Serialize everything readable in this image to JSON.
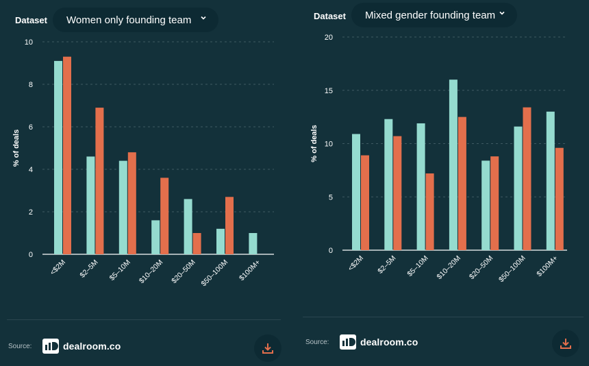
{
  "colors": {
    "background": "#13313a",
    "series_teal": "#95dbcf",
    "series_orange": "#e36f4c",
    "dropdown_bg": "#0d2a33"
  },
  "panels": [
    {
      "dataset_label": "Dataset",
      "dataset_value": "Women only founding team",
      "source_label": "Source:",
      "brand": "dealroom.co"
    },
    {
      "dataset_label": "Dataset",
      "dataset_value": "Mixed gender founding team",
      "source_label": "Source:",
      "brand": "dealroom.co"
    }
  ],
  "chart_data": [
    {
      "type": "bar",
      "title": "",
      "xlabel": "",
      "ylabel": "% of deals",
      "ylim": [
        0,
        10
      ],
      "yticks": [
        0,
        2,
        4,
        6,
        8,
        10
      ],
      "categories": [
        "<$2M",
        "$2–5M",
        "$5–10M",
        "$10–20M",
        "$20–50M",
        "$50–100M",
        "$100M+"
      ],
      "series": [
        {
          "name": "teal",
          "values": [
            9.1,
            4.6,
            4.4,
            1.6,
            2.6,
            1.2,
            1.0
          ]
        },
        {
          "name": "orange",
          "values": [
            9.3,
            6.9,
            4.8,
            3.6,
            1.0,
            2.7,
            null
          ]
        }
      ]
    },
    {
      "type": "bar",
      "title": "",
      "xlabel": "",
      "ylabel": "% of deals",
      "ylim": [
        0,
        20
      ],
      "yticks": [
        0,
        5,
        10,
        15,
        20
      ],
      "categories": [
        "<$2M",
        "$2–5M",
        "$5–10M",
        "$10–20M",
        "$20–50M",
        "$50–100M",
        "$100M+"
      ],
      "series": [
        {
          "name": "teal",
          "values": [
            10.9,
            12.3,
            11.9,
            16.0,
            8.4,
            11.6,
            13.0
          ]
        },
        {
          "name": "orange",
          "values": [
            8.9,
            10.7,
            7.2,
            12.5,
            8.8,
            13.4,
            9.6
          ]
        }
      ]
    }
  ]
}
